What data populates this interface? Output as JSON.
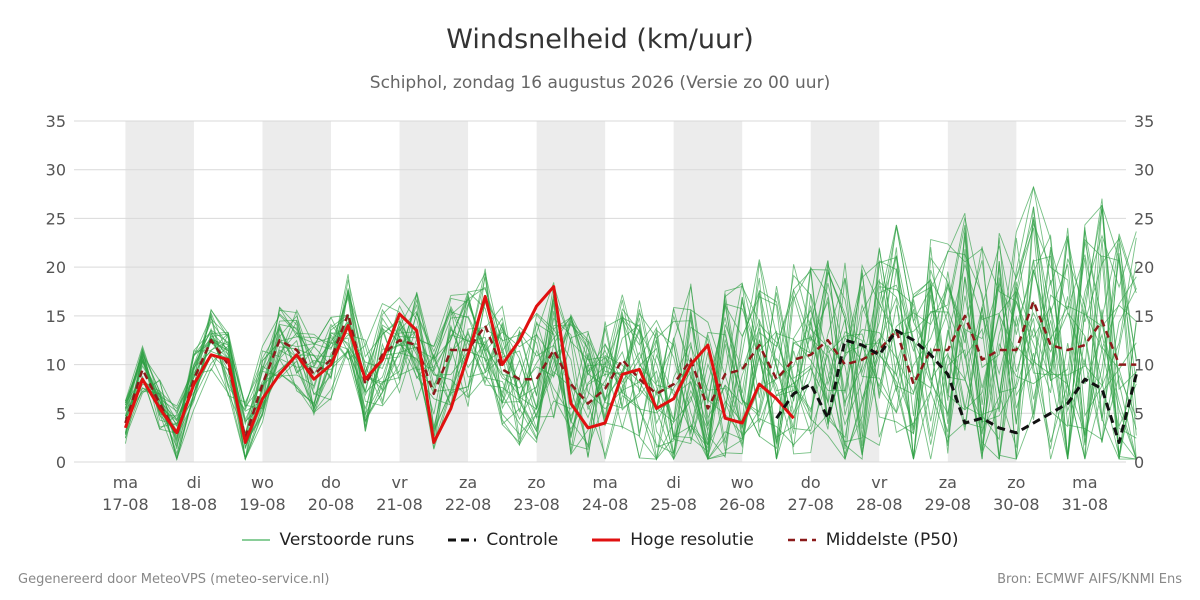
{
  "chart_data": {
    "type": "line",
    "title": "Windsnelheid (km/uur)",
    "subtitle": "Schiphol, zondag 16 augustus 2026 (Versie zo 00 uur)",
    "ylim": [
      0,
      35
    ],
    "yticks": [
      0,
      5,
      10,
      15,
      20,
      25,
      30,
      35
    ],
    "xlim": [
      -0.75,
      14.6
    ],
    "day_ticks": [
      {
        "day": "ma",
        "date": "17-08"
      },
      {
        "day": "di",
        "date": "18-08"
      },
      {
        "day": "wo",
        "date": "19-08"
      },
      {
        "day": "do",
        "date": "20-08"
      },
      {
        "day": "vr",
        "date": "21-08"
      },
      {
        "day": "za",
        "date": "22-08"
      },
      {
        "day": "zo",
        "date": "23-08"
      },
      {
        "day": "ma",
        "date": "24-08"
      },
      {
        "day": "di",
        "date": "25-08"
      },
      {
        "day": "wo",
        "date": "26-08"
      },
      {
        "day": "do",
        "date": "27-08"
      },
      {
        "day": "vr",
        "date": "28-08"
      },
      {
        "day": "za",
        "date": "29-08"
      },
      {
        "day": "zo",
        "date": "30-08"
      },
      {
        "day": "ma",
        "date": "31-08"
      }
    ],
    "shaded_days": [
      "17-08",
      "19-08",
      "21-08",
      "23-08",
      "25-08",
      "27-08",
      "29-08"
    ],
    "grid": true,
    "legend_position": "bottom",
    "x_step_days": 0.25,
    "series": [
      {
        "name": "Hoge resolutie",
        "color": "#e01010",
        "style": "solid",
        "values": [
          3.5,
          8.5,
          5.5,
          3,
          8,
          11,
          10.5,
          2,
          6.5,
          9,
          11,
          8.5,
          10,
          14,
          8.5,
          10.5,
          15.2,
          13.5,
          2,
          5.5,
          11,
          17,
          10,
          12.5,
          16,
          18,
          6,
          3.5,
          4,
          9,
          9.5,
          5.5,
          6.5,
          10,
          12,
          4.5,
          4,
          8,
          6.5,
          4.5
        ]
      },
      {
        "name": "Middelste (P50)",
        "color": "#8b1a1a",
        "style": "dashed",
        "values": [
          4,
          9.5,
          6,
          2.8,
          8.5,
          12.5,
          10,
          2.5,
          8,
          12.5,
          11.5,
          9,
          10.5,
          15.2,
          8,
          11,
          12.5,
          12,
          7,
          11.5,
          11.5,
          14,
          9.5,
          8.5,
          8.5,
          11.5,
          8,
          6,
          7.5,
          10.5,
          8.5,
          7,
          8,
          10.5,
          5.5,
          9,
          9.5,
          12,
          8.5,
          10.5,
          11,
          12.5,
          10,
          10.5,
          11.5,
          13.5,
          8,
          11.5,
          11.5,
          15,
          10.5,
          11.5,
          11.5,
          16.5,
          12,
          11.5,
          12,
          14.5,
          10,
          10
        ]
      },
      {
        "name": "Controle",
        "color": "#111111",
        "style": "dashed",
        "values": [
          4.5,
          7,
          8,
          4.5,
          12.5,
          12,
          11,
          13.5,
          12.5,
          11,
          9,
          4,
          4.5,
          3.5,
          3,
          4,
          5,
          6,
          8.5,
          7.5,
          2,
          9
        ]
      },
      {
        "name": "Verstoorde runs",
        "color": "#2ea043",
        "style": "thin",
        "values": []
      }
    ]
  },
  "legend": {
    "items": [
      {
        "label": "Verstoorde runs"
      },
      {
        "label": "Controle"
      },
      {
        "label": "Hoge resolutie"
      },
      {
        "label": "Middelste (P50)"
      }
    ]
  },
  "footer": {
    "left": "Gegenereerd door MeteoVPS (meteo-service.nl)",
    "right": "Bron: ECMWF AIFS/KNMI Ens"
  }
}
